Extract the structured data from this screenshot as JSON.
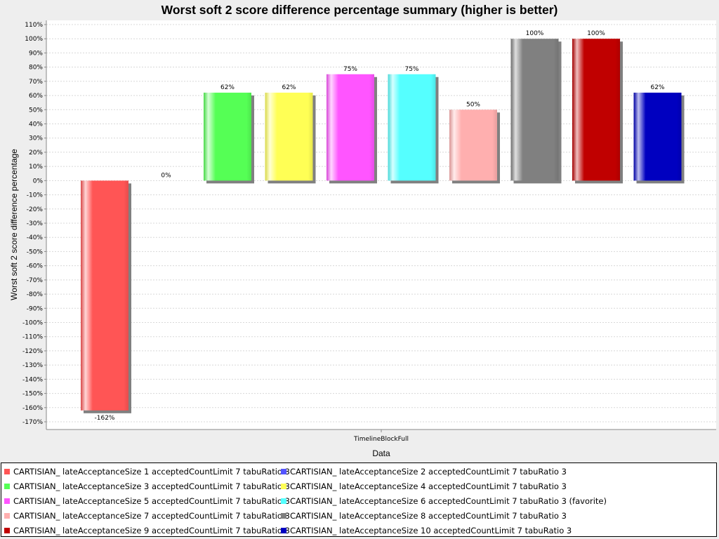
{
  "chart_data": {
    "type": "bar",
    "title": "Worst soft 2 score difference percentage summary (higher is better)",
    "xlabel": "Data",
    "ylabel": "Worst soft 2 score difference percentage",
    "categories": [
      "TimelineBlockFull"
    ],
    "ylim": [
      -170,
      110
    ],
    "ytick_step": 10,
    "grid": true,
    "legend_position": "bottom",
    "series": [
      {
        "name": "CARTISIAN_ lateAcceptanceSize 1 acceptedCountLimit 7 tabuRatio 3",
        "color": "#ff5555",
        "values": [
          -162
        ],
        "label": "-162%"
      },
      {
        "name": "CARTISIAN_ lateAcceptanceSize 2 acceptedCountLimit 7 tabuRatio 3",
        "color": "#5555ff",
        "values": [
          0
        ],
        "label": "0%"
      },
      {
        "name": "CARTISIAN_ lateAcceptanceSize 3 acceptedCountLimit 7 tabuRatio 3",
        "color": "#55ff55",
        "values": [
          62
        ],
        "label": "62%"
      },
      {
        "name": "CARTISIAN_ lateAcceptanceSize 4 acceptedCountLimit 7 tabuRatio 3",
        "color": "#ffff55",
        "values": [
          62
        ],
        "label": "62%"
      },
      {
        "name": "CARTISIAN_ lateAcceptanceSize 5 acceptedCountLimit 7 tabuRatio 3",
        "color": "#ff55ff",
        "values": [
          75
        ],
        "label": "75%"
      },
      {
        "name": "CARTISIAN_ lateAcceptanceSize 6 acceptedCountLimit 7 tabuRatio 3 (favorite)",
        "color": "#55ffff",
        "values": [
          75
        ],
        "label": "75%"
      },
      {
        "name": "CARTISIAN_ lateAcceptanceSize 7 acceptedCountLimit 7 tabuRatio 3",
        "color": "#ffafaf",
        "values": [
          50
        ],
        "label": "50%"
      },
      {
        "name": "CARTISIAN_ lateAcceptanceSize 8 acceptedCountLimit 7 tabuRatio 3",
        "color": "#808080",
        "values": [
          100
        ],
        "label": "100%"
      },
      {
        "name": "CARTISIAN_ lateAcceptanceSize 9 acceptedCountLimit 7 tabuRatio 3",
        "color": "#c00000",
        "values": [
          100
        ],
        "label": "100%"
      },
      {
        "name": "CARTISIAN_ lateAcceptanceSize 10 acceptedCountLimit 7 tabuRatio 3",
        "color": "#0000c0",
        "values": [
          62
        ],
        "label": "62%"
      }
    ]
  }
}
